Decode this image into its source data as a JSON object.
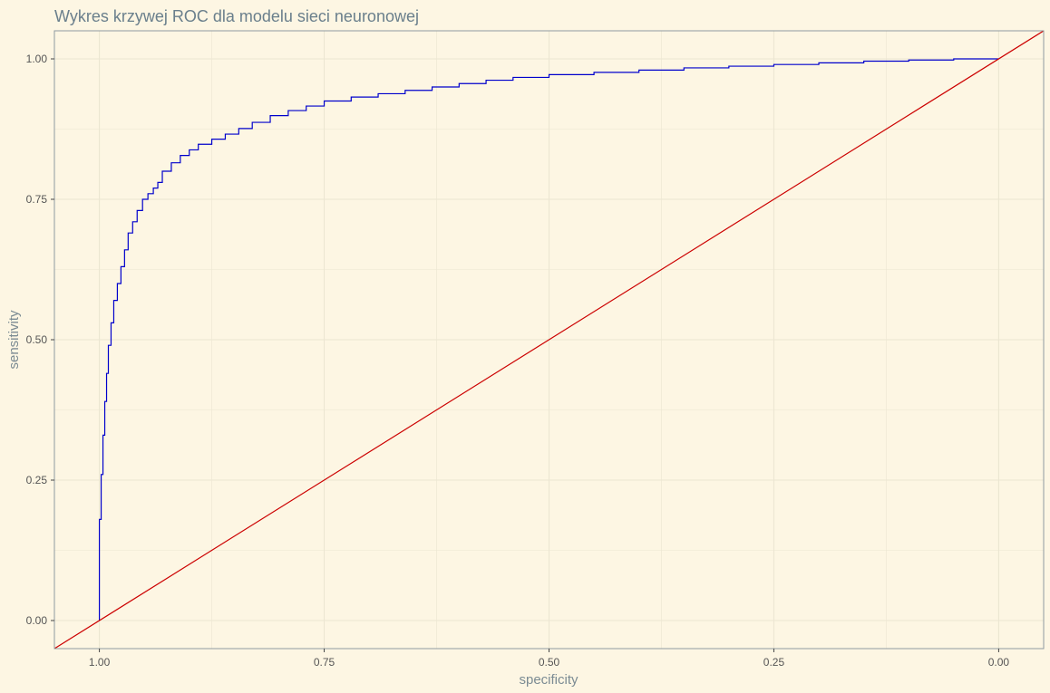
{
  "chart_data": {
    "type": "line",
    "title": "Wykres krzywej ROC dla modelu sieci neuronowej",
    "xlabel": "specificity",
    "ylabel": "sensitivity",
    "x_reversed": true,
    "xlim": [
      1.05,
      -0.05
    ],
    "ylim": [
      -0.05,
      1.05
    ],
    "x_ticks": [
      1.0,
      0.75,
      0.5,
      0.25,
      0.0
    ],
    "x_tick_labels": [
      "1.00",
      "0.75",
      "0.50",
      "0.25",
      "0.00"
    ],
    "y_ticks": [
      0.0,
      0.25,
      0.5,
      0.75,
      1.0
    ],
    "y_tick_labels": [
      "0.00",
      "0.25",
      "0.50",
      "0.75",
      "1.00"
    ],
    "grid": true,
    "colors": {
      "background": "#fdf6e3",
      "grid": "#ece6d2",
      "frame": "#8f9ba0",
      "title": "#6a7f8c",
      "axis_title": "#7b8b93",
      "tick_label": "#555555",
      "roc": "#0000cc",
      "diagonal": "#cc0000"
    },
    "series": [
      {
        "name": "ROC",
        "color": "#0000cc",
        "specificity": [
          1.0,
          1.0,
          0.998,
          0.996,
          0.994,
          0.992,
          0.99,
          0.987,
          0.984,
          0.98,
          0.976,
          0.972,
          0.968,
          0.963,
          0.958,
          0.952,
          0.946,
          0.94,
          0.935,
          0.93,
          0.92,
          0.91,
          0.9,
          0.89,
          0.875,
          0.86,
          0.845,
          0.83,
          0.81,
          0.79,
          0.77,
          0.75,
          0.72,
          0.69,
          0.66,
          0.63,
          0.6,
          0.57,
          0.54,
          0.5,
          0.45,
          0.4,
          0.35,
          0.3,
          0.25,
          0.2,
          0.15,
          0.1,
          0.05,
          0.0
        ],
        "sensitivity": [
          0.0,
          0.1,
          0.18,
          0.26,
          0.33,
          0.39,
          0.44,
          0.49,
          0.53,
          0.57,
          0.6,
          0.63,
          0.66,
          0.69,
          0.71,
          0.73,
          0.75,
          0.76,
          0.77,
          0.78,
          0.8,
          0.815,
          0.828,
          0.838,
          0.848,
          0.857,
          0.866,
          0.876,
          0.887,
          0.899,
          0.908,
          0.916,
          0.925,
          0.932,
          0.938,
          0.944,
          0.95,
          0.956,
          0.962,
          0.967,
          0.972,
          0.976,
          0.98,
          0.984,
          0.987,
          0.99,
          0.993,
          0.996,
          0.998,
          1.0
        ]
      },
      {
        "name": "reference diagonal",
        "color": "#cc0000",
        "specificity": [
          1.05,
          -0.05
        ],
        "sensitivity": [
          -0.05,
          1.05
        ]
      }
    ]
  }
}
